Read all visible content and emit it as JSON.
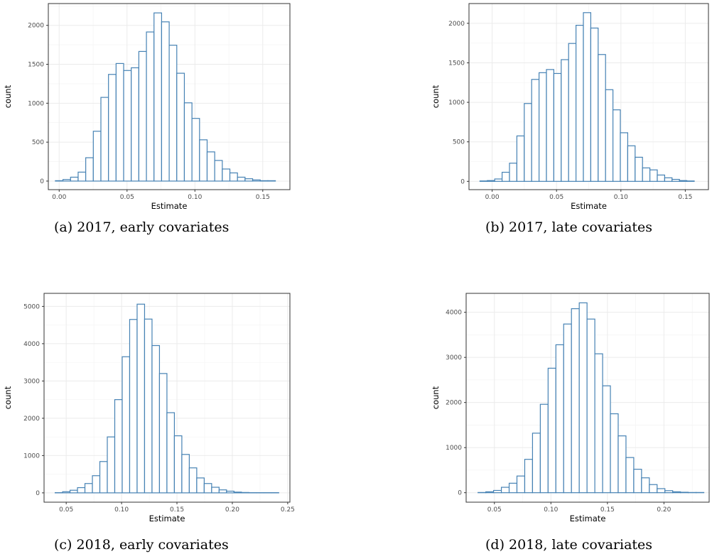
{
  "chart_data": [
    {
      "type": "bar",
      "caption": "(a) 2017, early covariates",
      "xlabel": "Estimate",
      "ylabel": "count",
      "xlim": [
        -0.008,
        0.17
      ],
      "ylim": [
        -110,
        2280
      ],
      "x_ticks": [
        0.0,
        0.05,
        0.1,
        0.15
      ],
      "x_tick_labels": [
        "0.00",
        "0.05",
        "0.10",
        "0.15"
      ],
      "y_ticks": [
        0,
        500,
        1000,
        1500,
        2000
      ],
      "y_tick_labels": [
        "0",
        "500",
        "1000",
        "1500",
        "2000"
      ],
      "bin_start": -0.0028,
      "bin_width": 0.00559,
      "values": [
        5,
        20,
        50,
        115,
        300,
        640,
        1075,
        1370,
        1510,
        1420,
        1455,
        1665,
        1915,
        2160,
        2045,
        1745,
        1385,
        1005,
        805,
        530,
        375,
        265,
        155,
        105,
        50,
        30,
        15,
        5,
        5
      ],
      "grid": true,
      "color": "#4682b4"
    },
    {
      "type": "bar",
      "caption": "(b) 2017, late covariates",
      "xlabel": "Estimate",
      "ylabel": "count",
      "xlim": [
        -0.018,
        0.168
      ],
      "ylim": [
        -105,
        2250
      ],
      "x_ticks": [
        0.0,
        0.05,
        0.1,
        0.15
      ],
      "x_tick_labels": [
        "0.00",
        "0.05",
        "0.10",
        "0.15"
      ],
      "y_ticks": [
        0,
        500,
        1000,
        1500,
        2000
      ],
      "y_tick_labels": [
        "0",
        "500",
        "1000",
        "1500",
        "2000"
      ],
      "bin_start": -0.0095,
      "bin_width": 0.00574,
      "values": [
        5,
        10,
        30,
        115,
        230,
        575,
        985,
        1290,
        1375,
        1415,
        1365,
        1540,
        1745,
        1975,
        2135,
        1940,
        1605,
        1160,
        905,
        615,
        450,
        305,
        170,
        145,
        80,
        45,
        25,
        10,
        5
      ],
      "grid": true,
      "color": "#4682b4"
    },
    {
      "type": "bar",
      "caption": "(c) 2018, early covariates",
      "xlabel": "Estimate",
      "ylabel": "count",
      "xlim": [
        0.03,
        0.252
      ],
      "ylim": [
        -250,
        5350
      ],
      "x_ticks": [
        0.05,
        0.1,
        0.15,
        0.2,
        0.25
      ],
      "x_tick_labels": [
        "0.05",
        "0.10",
        "0.15",
        "0.20",
        "0.25"
      ],
      "y_ticks": [
        0,
        1000,
        2000,
        3000,
        4000,
        5000
      ],
      "y_tick_labels": [
        "0",
        "1000",
        "2000",
        "3000",
        "4000",
        "5000"
      ],
      "bin_start": 0.04,
      "bin_width": 0.00673,
      "values": [
        5,
        30,
        70,
        140,
        250,
        460,
        840,
        1500,
        2500,
        3650,
        4650,
        5060,
        4660,
        3950,
        3200,
        2150,
        1530,
        1030,
        670,
        400,
        250,
        150,
        80,
        45,
        20,
        10,
        5,
        5,
        5,
        5
      ],
      "grid": true,
      "color": "#4682b4"
    },
    {
      "type": "bar",
      "caption": "(d) 2018, late covariates",
      "xlabel": "Estimate",
      "ylabel": "count",
      "xlim": [
        0.025,
        0.24
      ],
      "ylim": [
        -210,
        4420
      ],
      "x_ticks": [
        0.05,
        0.1,
        0.15,
        0.2
      ],
      "x_tick_labels": [
        "0.05",
        "0.10",
        "0.15",
        "0.20"
      ],
      "y_ticks": [
        0,
        1000,
        2000,
        3000,
        4000
      ],
      "y_tick_labels": [
        "0",
        "1000",
        "2000",
        "3000",
        "4000"
      ],
      "bin_start": 0.0355,
      "bin_width": 0.00689,
      "values": [
        5,
        20,
        50,
        120,
        210,
        370,
        740,
        1320,
        1960,
        2760,
        3280,
        3740,
        4080,
        4210,
        3850,
        3080,
        2370,
        1750,
        1260,
        780,
        520,
        330,
        180,
        90,
        45,
        20,
        10,
        5,
        5
      ],
      "grid": true,
      "color": "#4682b4"
    }
  ]
}
